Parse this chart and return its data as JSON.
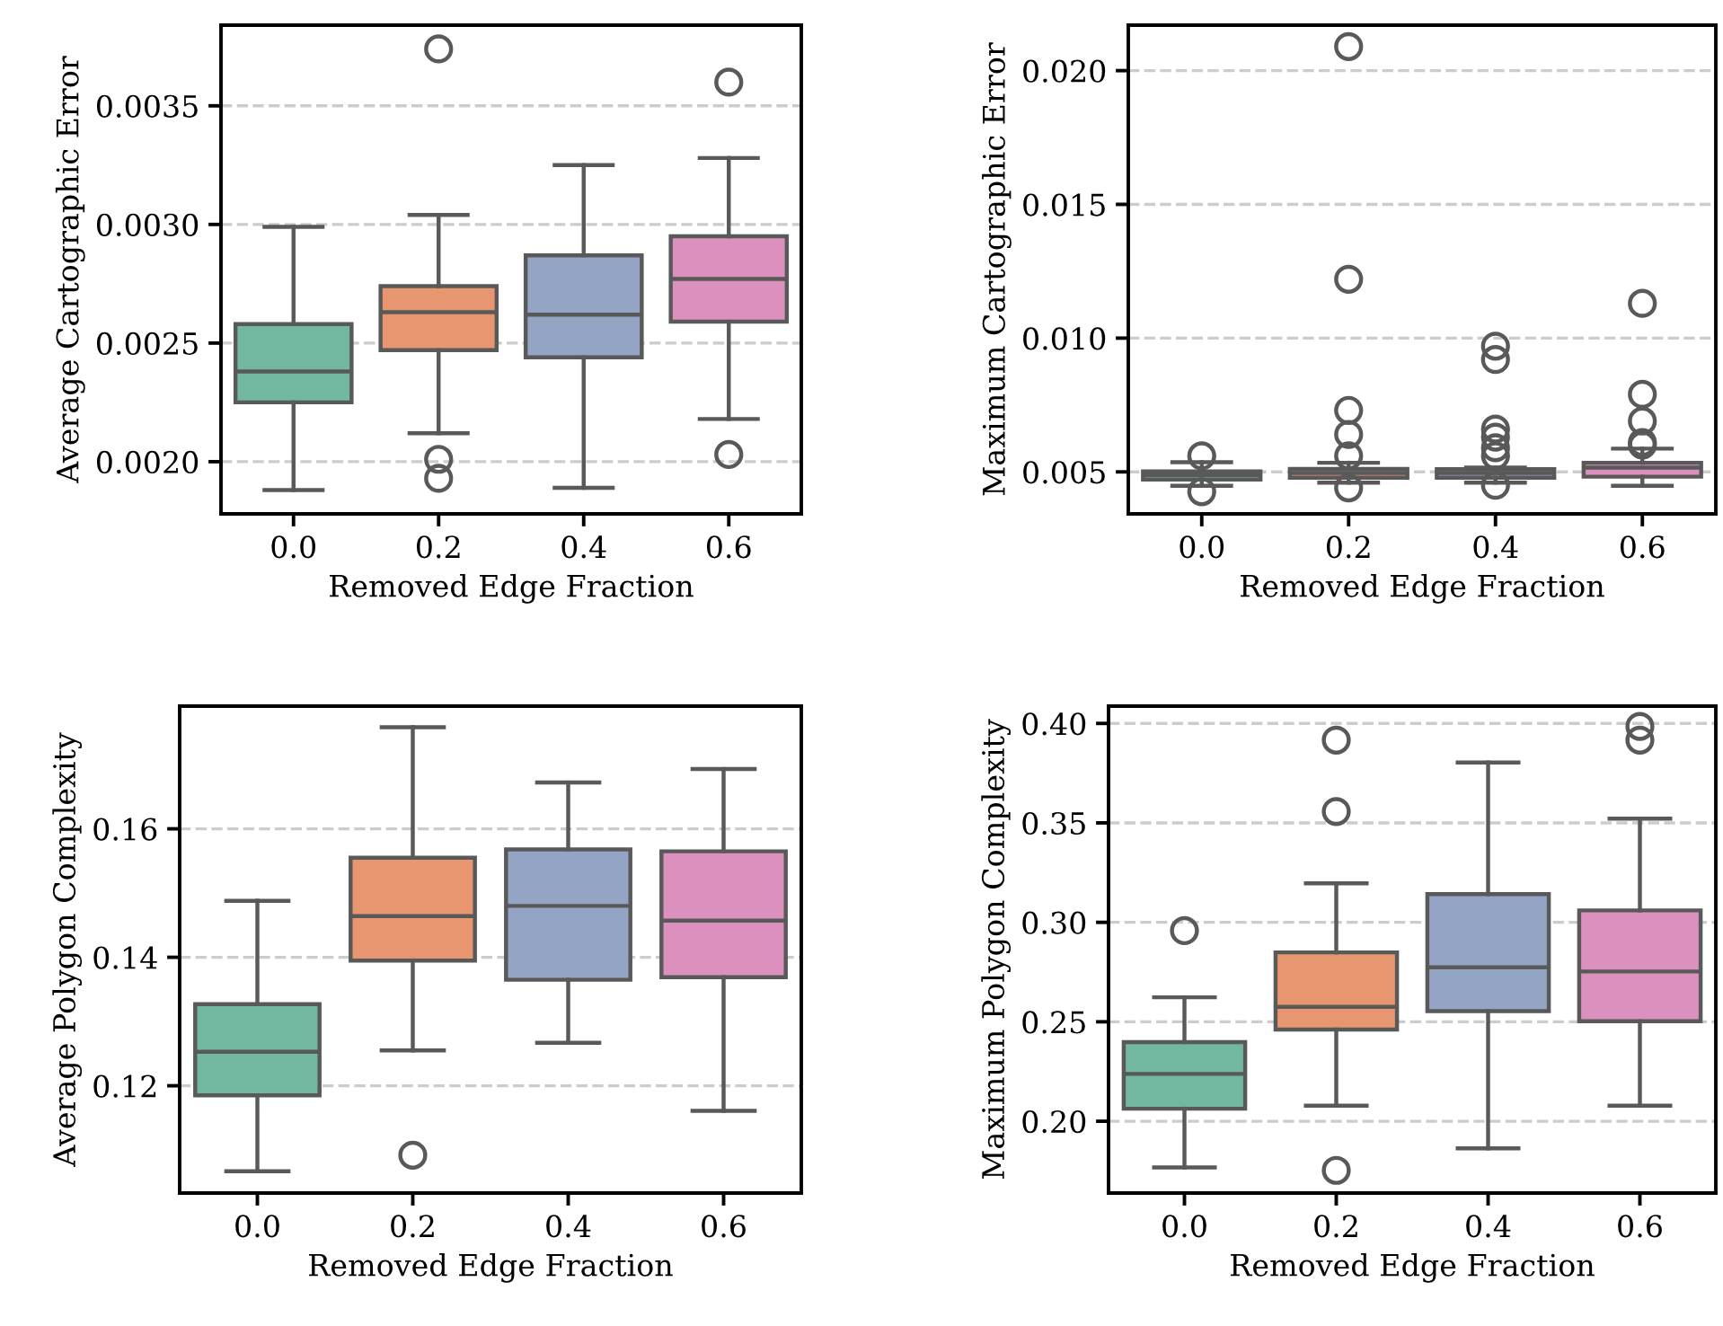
{
  "chart_data": [
    {
      "type": "box",
      "xlabel": "Removed Edge Fraction",
      "ylabel": "Average Cartographic Error",
      "categories": [
        "0.0",
        "0.2",
        "0.4",
        "0.6"
      ],
      "colors": [
        "#72b8a1",
        "#e8966f",
        "#94a4c4",
        "#db90bd"
      ],
      "ylim": [
        0.00178,
        0.00384
      ],
      "yticks": [
        {
          "value": 0.002,
          "label": "0.0020"
        },
        0.0025,
        {
          "value": 0.003,
          "label": "0.0030"
        },
        0.0035
      ],
      "grid": "y",
      "line_style": "dashed",
      "boxes": [
        {
          "low": 0.00188,
          "q1": 0.00225,
          "median": 0.00238,
          "q3": 0.00258,
          "high": 0.00299
        },
        {
          "low": 0.00212,
          "q1": 0.00247,
          "median": 0.00263,
          "q3": 0.00274,
          "high": 0.00304,
          "outliers": [
            0.00374,
            0.00201,
            0.00193
          ]
        },
        {
          "low": 0.00189,
          "q1": 0.00244,
          "median": 0.00262,
          "q3": 0.00287,
          "high": 0.00325
        },
        {
          "low": 0.00218,
          "q1": 0.00259,
          "median": 0.00277,
          "q3": 0.00295,
          "high": 0.00328,
          "outliers": [
            0.0036,
            0.00203
          ]
        }
      ]
    },
    {
      "type": "box",
      "xlabel": "Removed Edge Fraction",
      "ylabel": "Maximum Cartographic Error",
      "categories": [
        "0.0",
        "0.2",
        "0.4",
        "0.6"
      ],
      "colors": [
        "#72b8a1",
        "#e8966f",
        "#94a4c4",
        "#db90bd"
      ],
      "ylim": [
        0.00343,
        0.0217
      ],
      "yticks": [
        0.005,
        {
          "value": 0.01,
          "label": "0.010"
        },
        0.015,
        {
          "value": 0.02,
          "label": "0.020"
        }
      ],
      "grid": "y",
      "line_style": "dashed",
      "boxes": [
        {
          "low": 0.00448,
          "q1": 0.00471,
          "median": 0.00487,
          "q3": 0.00502,
          "high": 0.00536,
          "outliers": [
            0.0056,
            0.00426
          ]
        },
        {
          "low": 0.0046,
          "q1": 0.00478,
          "median": 0.00496,
          "q3": 0.00511,
          "high": 0.00534,
          "outliers": [
            0.0209,
            0.0122,
            0.0073,
            0.0064,
            0.0056,
            0.0044
          ]
        },
        {
          "low": 0.0046,
          "q1": 0.00478,
          "median": 0.00496,
          "q3": 0.0051,
          "high": 0.00516,
          "outliers": [
            0.0097,
            0.0092,
            0.0066,
            0.0063,
            0.0059,
            0.0056,
            0.0045
          ]
        },
        {
          "low": 0.00448,
          "q1": 0.00482,
          "median": 0.00516,
          "q3": 0.00534,
          "high": 0.00587,
          "outliers": [
            0.0113,
            0.0079,
            0.0069,
            0.0061,
            0.006
          ]
        }
      ]
    },
    {
      "type": "box",
      "xlabel": "Removed Edge Fraction",
      "ylabel": "Average Polygon Complexity",
      "categories": [
        "0.0",
        "0.2",
        "0.4",
        "0.6"
      ],
      "colors": [
        "#72b8a1",
        "#e8966f",
        "#94a4c4",
        "#db90bd"
      ],
      "ylim": [
        0.1033,
        0.1791
      ],
      "yticks": [
        0.12,
        0.14,
        0.16
      ],
      "grid": "y",
      "line_style": "dashed",
      "boxes": [
        {
          "low": 0.1067,
          "q1": 0.1185,
          "median": 0.1253,
          "q3": 0.1327,
          "high": 0.1488
        },
        {
          "low": 0.1255,
          "q1": 0.1395,
          "median": 0.1464,
          "q3": 0.1555,
          "high": 0.1758,
          "outliers": [
            0.1092
          ]
        },
        {
          "low": 0.1267,
          "q1": 0.1365,
          "median": 0.148,
          "q3": 0.1568,
          "high": 0.1672
        },
        {
          "low": 0.1161,
          "q1": 0.1369,
          "median": 0.1457,
          "q3": 0.1565,
          "high": 0.1693
        }
      ]
    },
    {
      "type": "box",
      "xlabel": "Removed Edge Fraction",
      "ylabel": "Maximum Polygon Complexity",
      "categories": [
        "0.0",
        "0.2",
        "0.4",
        "0.6"
      ],
      "colors": [
        "#72b8a1",
        "#e8966f",
        "#94a4c4",
        "#db90bd"
      ],
      "ylim": [
        0.1639,
        0.4087
      ],
      "yticks": [
        {
          "value": 0.2,
          "label": "0.20"
        },
        0.25,
        {
          "value": 0.3,
          "label": "0.30"
        },
        0.35,
        {
          "value": 0.4,
          "label": "0.40"
        }
      ],
      "grid": "y",
      "line_style": "dashed",
      "boxes": [
        {
          "low": 0.1768,
          "q1": 0.2063,
          "median": 0.2238,
          "q3": 0.2398,
          "high": 0.2623,
          "outliers": [
            0.2958
          ]
        },
        {
          "low": 0.2078,
          "q1": 0.2461,
          "median": 0.2575,
          "q3": 0.2849,
          "high": 0.3196,
          "outliers": [
            0.3916,
            0.3557,
            0.1753
          ]
        },
        {
          "low": 0.1864,
          "q1": 0.2554,
          "median": 0.2774,
          "q3": 0.3142,
          "high": 0.3804
        },
        {
          "low": 0.2078,
          "q1": 0.2503,
          "median": 0.2753,
          "q3": 0.306,
          "high": 0.3521,
          "outliers": [
            0.3985,
            0.3916
          ]
        }
      ]
    }
  ]
}
